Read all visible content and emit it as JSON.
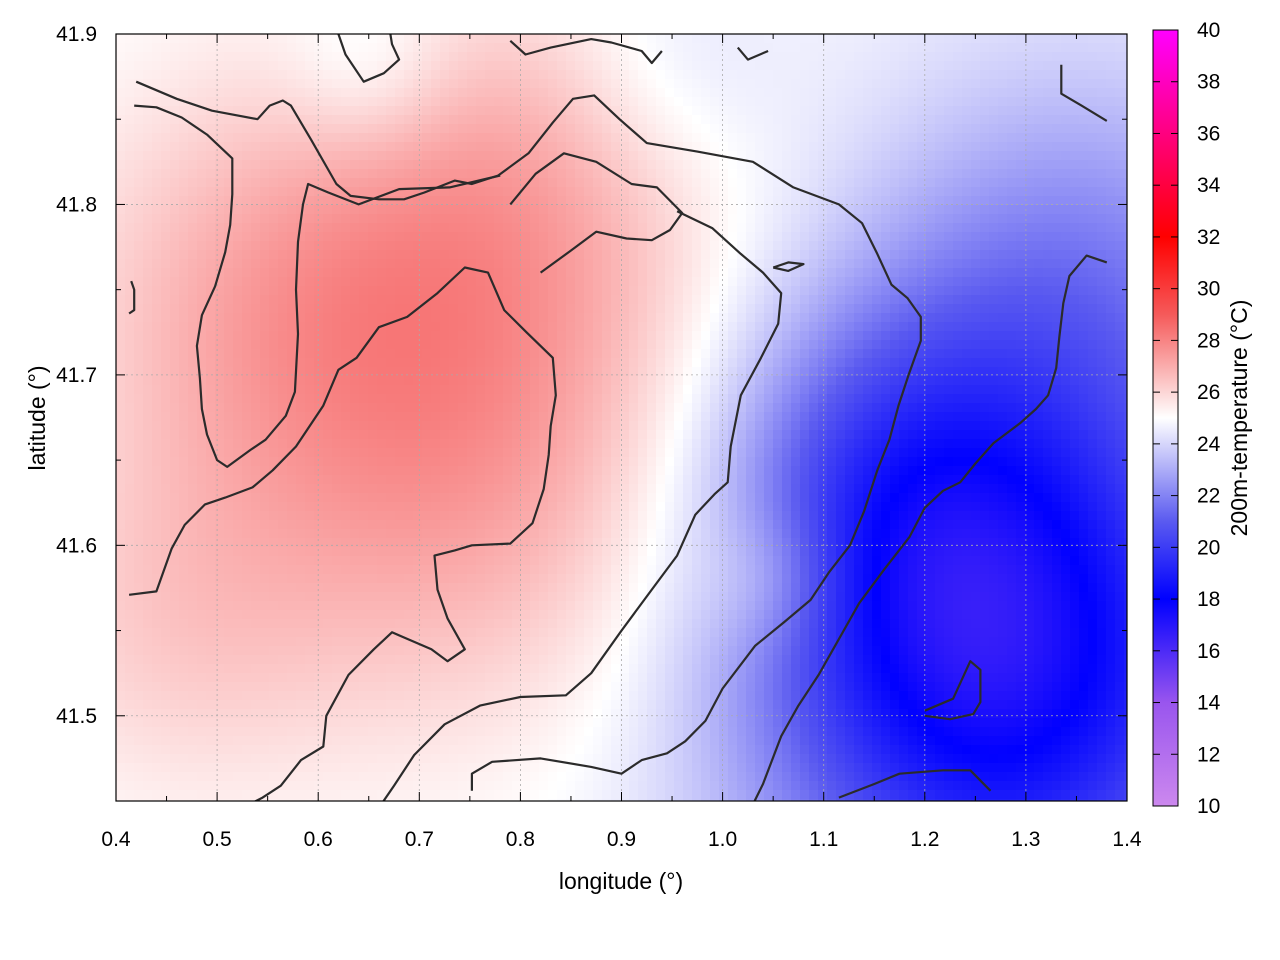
{
  "chart_data": {
    "type": "heatmap",
    "xlabel": "longitude (°)",
    "ylabel": "latitude (°)",
    "colorbar_label": "200m-temperature (°C)",
    "xlim": [
      0.4,
      1.4
    ],
    "ylim": [
      41.45,
      41.9
    ],
    "x_ticks": [
      "0.4",
      "0.5",
      "0.6",
      "0.7",
      "0.8",
      "0.9",
      "1.0",
      "1.1",
      "1.2",
      "1.3",
      "1.4"
    ],
    "y_ticks": [
      "41.5",
      "41.6",
      "41.7",
      "41.8",
      "41.9"
    ],
    "colorbar_range": [
      10,
      40
    ],
    "colorbar_ticks": [
      "10",
      "12",
      "14",
      "16",
      "18",
      "20",
      "22",
      "24",
      "26",
      "28",
      "30",
      "32",
      "34",
      "36",
      "38",
      "40"
    ],
    "colorbar_colors": [
      {
        "value": 10,
        "color": "#cc88ee"
      },
      {
        "value": 14,
        "color": "#9955ee"
      },
      {
        "value": 18,
        "color": "#0000ff"
      },
      {
        "value": 21,
        "color": "#5a5af0"
      },
      {
        "value": 25,
        "color": "#ffffff"
      },
      {
        "value": 29,
        "color": "#f55a5a"
      },
      {
        "value": 32,
        "color": "#ff0000"
      },
      {
        "value": 40,
        "color": "#ff00ff"
      }
    ],
    "grid": true,
    "temperature_field": {
      "base": 24.8,
      "trend": "warm in west and center (~26.5-27 °C), cooling to ~21 °C in the south-east",
      "anchors": [
        {
          "lon": 0.75,
          "lat": 41.65,
          "temp": 27.2,
          "spread": 0.18
        },
        {
          "lon": 0.55,
          "lat": 41.75,
          "temp": 26.5,
          "spread": 0.15
        },
        {
          "lon": 0.8,
          "lat": 41.82,
          "temp": 26.4,
          "spread": 0.14
        },
        {
          "lon": 0.45,
          "lat": 41.55,
          "temp": 25.9,
          "spread": 0.12
        },
        {
          "lon": 1.05,
          "lat": 41.58,
          "temp": 26.0,
          "spread": 0.05
        },
        {
          "lon": 1.3,
          "lat": 41.5,
          "temp": 20.8,
          "spread": 0.2
        },
        {
          "lon": 1.25,
          "lat": 41.55,
          "temp": 21.0,
          "spread": 0.15
        },
        {
          "lon": 1.35,
          "lat": 41.75,
          "temp": 22.2,
          "spread": 0.15
        },
        {
          "lon": 1.15,
          "lat": 41.65,
          "temp": 22.5,
          "spread": 0.12
        },
        {
          "lon": 0.65,
          "lat": 41.88,
          "temp": 23.8,
          "spread": 0.06
        },
        {
          "lon": 0.95,
          "lat": 41.88,
          "temp": 24.0,
          "spread": 0.08
        }
      ]
    },
    "contours": [
      {
        "points": [
          [
            0.42,
            41.872
          ],
          [
            0.46,
            41.862
          ],
          [
            0.495,
            41.855
          ],
          [
            0.54,
            41.85
          ],
          [
            0.552,
            41.858
          ],
          [
            0.565,
            41.861
          ],
          [
            0.573,
            41.858
          ],
          [
            0.593,
            41.838
          ],
          [
            0.618,
            41.812
          ],
          [
            0.632,
            41.805
          ],
          [
            0.66,
            41.803
          ],
          [
            0.685,
            41.803
          ],
          [
            0.705,
            41.807
          ],
          [
            0.735,
            41.814
          ],
          [
            0.752,
            41.812
          ],
          [
            0.778,
            41.817
          ],
          [
            0.808,
            41.83
          ],
          [
            0.832,
            41.848
          ],
          [
            0.852,
            41.862
          ],
          [
            0.873,
            41.864
          ],
          [
            0.898,
            41.85
          ],
          [
            0.925,
            41.836
          ],
          [
            0.975,
            41.831
          ],
          [
            1.03,
            41.825
          ],
          [
            1.07,
            41.81
          ],
          [
            1.115,
            41.8
          ],
          [
            1.138,
            41.789
          ],
          [
            1.153,
            41.771
          ],
          [
            1.167,
            41.753
          ],
          [
            1.183,
            41.745
          ],
          [
            1.196,
            41.734
          ],
          [
            1.196,
            41.72
          ],
          [
            1.184,
            41.7
          ],
          [
            1.174,
            41.682
          ],
          [
            1.165,
            41.662
          ],
          [
            1.153,
            41.644
          ],
          [
            1.14,
            41.62
          ],
          [
            1.126,
            41.6
          ],
          [
            1.105,
            41.584
          ],
          [
            1.087,
            41.568
          ],
          [
            1.061,
            41.555
          ],
          [
            1.032,
            41.541
          ],
          [
            1.0,
            41.516
          ],
          [
            0.983,
            41.497
          ],
          [
            0.963,
            41.485
          ],
          [
            0.945,
            41.478
          ],
          [
            0.92,
            41.474
          ],
          [
            0.9,
            41.466
          ],
          [
            0.87,
            41.47
          ],
          [
            0.82,
            41.475
          ],
          [
            0.772,
            41.473
          ],
          [
            0.752,
            41.466
          ],
          [
            0.752,
            41.456
          ]
        ]
      },
      {
        "points": [
          [
            0.418,
            41.858
          ],
          [
            0.44,
            41.857
          ],
          [
            0.465,
            41.851
          ],
          [
            0.49,
            41.841
          ],
          [
            0.515,
            41.827
          ],
          [
            0.515,
            41.806
          ],
          [
            0.513,
            41.788
          ],
          [
            0.508,
            41.772
          ],
          [
            0.498,
            41.752
          ],
          [
            0.485,
            41.735
          ],
          [
            0.48,
            41.717
          ],
          [
            0.483,
            41.698
          ],
          [
            0.485,
            41.68
          ],
          [
            0.49,
            41.665
          ],
          [
            0.5,
            41.65
          ],
          [
            0.51,
            41.646
          ],
          [
            0.533,
            41.656
          ],
          [
            0.548,
            41.662
          ],
          [
            0.568,
            41.676
          ],
          [
            0.577,
            41.69
          ],
          [
            0.58,
            41.724
          ],
          [
            0.578,
            41.75
          ],
          [
            0.58,
            41.778
          ],
          [
            0.585,
            41.8
          ],
          [
            0.59,
            41.812
          ],
          [
            0.61,
            41.807
          ],
          [
            0.64,
            41.8
          ],
          [
            0.68,
            41.809
          ],
          [
            0.73,
            41.81
          ],
          [
            0.78,
            41.817
          ]
        ]
      },
      {
        "points": [
          [
            0.82,
            41.76
          ],
          [
            0.85,
            41.773
          ],
          [
            0.875,
            41.784
          ],
          [
            0.905,
            41.78
          ],
          [
            0.93,
            41.779
          ],
          [
            0.948,
            41.785
          ],
          [
            0.96,
            41.795
          ],
          [
            0.935,
            41.81
          ],
          [
            0.91,
            41.812
          ],
          [
            0.875,
            41.825
          ],
          [
            0.843,
            41.83
          ],
          [
            0.815,
            41.818
          ],
          [
            0.79,
            41.8
          ]
        ]
      },
      {
        "points": [
          [
            0.413,
            41.571
          ],
          [
            0.44,
            41.573
          ],
          [
            0.455,
            41.598
          ],
          [
            0.468,
            41.612
          ],
          [
            0.488,
            41.624
          ],
          [
            0.508,
            41.628
          ],
          [
            0.535,
            41.634
          ],
          [
            0.555,
            41.644
          ],
          [
            0.578,
            41.658
          ],
          [
            0.605,
            41.682
          ],
          [
            0.62,
            41.703
          ],
          [
            0.638,
            41.71
          ],
          [
            0.66,
            41.728
          ],
          [
            0.688,
            41.734
          ],
          [
            0.718,
            41.748
          ],
          [
            0.745,
            41.763
          ],
          [
            0.768,
            41.76
          ],
          [
            0.784,
            41.738
          ],
          [
            0.806,
            41.725
          ],
          [
            0.832,
            41.71
          ],
          [
            0.835,
            41.688
          ],
          [
            0.83,
            41.67
          ],
          [
            0.828,
            41.653
          ],
          [
            0.823,
            41.633
          ],
          [
            0.812,
            41.613
          ],
          [
            0.79,
            41.601
          ],
          [
            0.752,
            41.6
          ],
          [
            0.735,
            41.597
          ],
          [
            0.715,
            41.594
          ],
          [
            0.718,
            41.574
          ],
          [
            0.728,
            41.557
          ],
          [
            0.745,
            41.539
          ],
          [
            0.728,
            41.532
          ],
          [
            0.712,
            41.539
          ],
          [
            0.673,
            41.549
          ],
          [
            0.655,
            41.539
          ],
          [
            0.63,
            41.524
          ],
          [
            0.608,
            41.5
          ],
          [
            0.605,
            41.482
          ],
          [
            0.583,
            41.474
          ],
          [
            0.563,
            41.459
          ],
          [
            0.545,
            41.452
          ],
          [
            0.525,
            41.446
          ]
        ]
      },
      {
        "points": [
          [
            0.66,
            41.446
          ],
          [
            0.675,
            41.459
          ],
          [
            0.695,
            41.477
          ],
          [
            0.725,
            41.495
          ],
          [
            0.76,
            41.506
          ],
          [
            0.8,
            41.511
          ],
          [
            0.845,
            41.512
          ],
          [
            0.87,
            41.525
          ],
          [
            0.9,
            41.55
          ],
          [
            0.93,
            41.574
          ],
          [
            0.955,
            41.594
          ],
          [
            0.973,
            41.618
          ],
          [
            0.992,
            41.63
          ],
          [
            1.005,
            41.637
          ],
          [
            1.008,
            41.658
          ],
          [
            1.018,
            41.688
          ],
          [
            1.038,
            41.71
          ],
          [
            1.055,
            41.73
          ],
          [
            1.058,
            41.748
          ],
          [
            1.04,
            41.76
          ],
          [
            1.018,
            41.771
          ],
          [
            0.99,
            41.786
          ],
          [
            0.955,
            41.796
          ]
        ]
      },
      {
        "points": [
          [
            1.025,
            41.442
          ],
          [
            1.04,
            41.46
          ],
          [
            1.058,
            41.488
          ],
          [
            1.075,
            41.506
          ],
          [
            1.095,
            41.524
          ],
          [
            1.115,
            41.545
          ],
          [
            1.135,
            41.566
          ],
          [
            1.16,
            41.586
          ],
          [
            1.185,
            41.605
          ],
          [
            1.2,
            41.622
          ],
          [
            1.218,
            41.632
          ],
          [
            1.235,
            41.637
          ],
          [
            1.25,
            41.648
          ],
          [
            1.268,
            41.66
          ],
          [
            1.295,
            41.672
          ],
          [
            1.31,
            41.68
          ],
          [
            1.322,
            41.688
          ],
          [
            1.33,
            41.704
          ],
          [
            1.333,
            41.722
          ],
          [
            1.337,
            41.742
          ],
          [
            1.343,
            41.758
          ],
          [
            1.36,
            41.77
          ],
          [
            1.38,
            41.766
          ]
        ]
      },
      {
        "points": [
          [
            1.115,
            41.452
          ],
          [
            1.15,
            41.46
          ],
          [
            1.175,
            41.466
          ],
          [
            1.218,
            41.468
          ],
          [
            1.245,
            41.468
          ],
          [
            1.265,
            41.456
          ]
        ]
      },
      {
        "points": [
          [
            1.2,
            41.5
          ],
          [
            1.225,
            41.498
          ],
          [
            1.248,
            41.501
          ],
          [
            1.255,
            41.508
          ],
          [
            1.255,
            41.527
          ],
          [
            1.245,
            41.532
          ],
          [
            1.228,
            41.51
          ],
          [
            1.2,
            41.503
          ]
        ]
      },
      {
        "points": [
          [
            1.05,
            41.763
          ],
          [
            1.065,
            41.766
          ],
          [
            1.08,
            41.765
          ],
          [
            1.065,
            41.761
          ],
          [
            1.05,
            41.763
          ]
        ]
      },
      {
        "points": [
          [
            0.62,
            41.9
          ],
          [
            0.627,
            41.888
          ],
          [
            0.645,
            41.872
          ],
          [
            0.665,
            41.877
          ],
          [
            0.68,
            41.885
          ],
          [
            0.673,
            41.894
          ],
          [
            0.67,
            41.905
          ]
        ]
      },
      {
        "points": [
          [
            0.79,
            41.896
          ],
          [
            0.805,
            41.888
          ],
          [
            0.83,
            41.892
          ],
          [
            0.87,
            41.897
          ],
          [
            0.89,
            41.895
          ],
          [
            0.92,
            41.89
          ],
          [
            0.93,
            41.883
          ],
          [
            0.94,
            41.89
          ]
        ]
      },
      {
        "points": [
          [
            1.015,
            41.892
          ],
          [
            1.025,
            41.885
          ],
          [
            1.045,
            41.89
          ]
        ]
      },
      {
        "points": [
          [
            1.335,
            41.882
          ],
          [
            1.335,
            41.865
          ],
          [
            1.355,
            41.858
          ],
          [
            1.38,
            41.849
          ]
        ]
      },
      {
        "points": [
          [
            0.415,
            41.755
          ],
          [
            0.418,
            41.75
          ],
          [
            0.418,
            41.738
          ],
          [
            0.413,
            41.736
          ]
        ]
      }
    ]
  }
}
